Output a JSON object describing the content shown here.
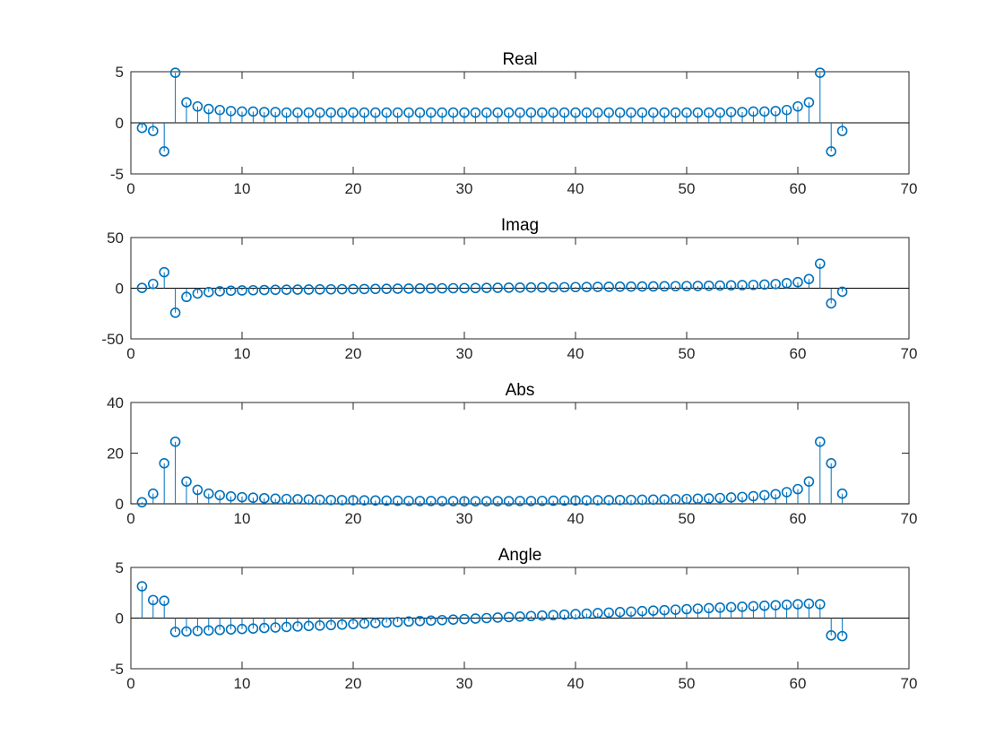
{
  "chart_data": [
    {
      "type": "stem",
      "title": "Real",
      "xlabel": "",
      "ylabel": "",
      "xlim": [
        0,
        70
      ],
      "ylim": [
        -5,
        5
      ],
      "xticks": [
        0,
        10,
        20,
        30,
        40,
        50,
        60,
        70
      ],
      "yticks": [
        -5,
        0,
        5
      ],
      "x": [
        1,
        2,
        3,
        4,
        5,
        6,
        7,
        8,
        9,
        10,
        11,
        12,
        13,
        14,
        15,
        16,
        17,
        18,
        19,
        20,
        21,
        22,
        23,
        24,
        25,
        26,
        27,
        28,
        29,
        30,
        31,
        32,
        33,
        34,
        35,
        36,
        37,
        38,
        39,
        40,
        41,
        42,
        43,
        44,
        45,
        46,
        47,
        48,
        49,
        50,
        51,
        52,
        53,
        54,
        55,
        56,
        57,
        58,
        59,
        60,
        61,
        62,
        63,
        64
      ],
      "values": [
        -0.5,
        -0.8,
        -2.8,
        4.9,
        2.0,
        1.6,
        1.35,
        1.25,
        1.15,
        1.1,
        1.1,
        1.05,
        1.05,
        1.0,
        1.0,
        1.0,
        1.0,
        1.0,
        1.0,
        1.0,
        1.0,
        1.0,
        1.0,
        1.0,
        1.0,
        1.0,
        1.0,
        1.0,
        1.0,
        1.0,
        1.0,
        1.0,
        1.0,
        1.0,
        1.0,
        1.0,
        1.0,
        1.0,
        1.0,
        1.0,
        1.0,
        1.0,
        1.0,
        1.0,
        1.0,
        1.0,
        1.0,
        1.0,
        1.0,
        1.0,
        1.0,
        1.0,
        1.0,
        1.05,
        1.05,
        1.1,
        1.1,
        1.15,
        1.25,
        1.6,
        2.0,
        4.9,
        -2.8,
        -0.8
      ]
    },
    {
      "type": "stem",
      "title": "Imag",
      "xlabel": "",
      "ylabel": "",
      "xlim": [
        0,
        70
      ],
      "ylim": [
        -50,
        50
      ],
      "xticks": [
        0,
        10,
        20,
        30,
        40,
        50,
        60,
        70
      ],
      "yticks": [
        -50,
        0,
        50
      ],
      "x": [
        1,
        2,
        3,
        4,
        5,
        6,
        7,
        8,
        9,
        10,
        11,
        12,
        13,
        14,
        15,
        16,
        17,
        18,
        19,
        20,
        21,
        22,
        23,
        24,
        25,
        26,
        27,
        28,
        29,
        30,
        31,
        32,
        33,
        34,
        35,
        36,
        37,
        38,
        39,
        40,
        41,
        42,
        43,
        44,
        45,
        46,
        47,
        48,
        49,
        50,
        51,
        52,
        53,
        54,
        55,
        56,
        57,
        58,
        59,
        60,
        61,
        62,
        63,
        64
      ],
      "values": [
        0.3,
        4.2,
        15.8,
        -24.2,
        -8.6,
        -5.2,
        -3.8,
        -3.0,
        -2.5,
        -2.2,
        -2.0,
        -1.8,
        -1.6,
        -1.5,
        -1.4,
        -1.3,
        -1.2,
        -1.1,
        -1.0,
        -0.9,
        -0.8,
        -0.7,
        -0.6,
        -0.5,
        -0.4,
        -0.3,
        -0.2,
        -0.1,
        0.0,
        0.1,
        0.2,
        0.3,
        0.4,
        0.5,
        0.6,
        0.7,
        0.8,
        0.9,
        1.0,
        1.1,
        1.2,
        1.3,
        1.4,
        1.5,
        1.6,
        1.7,
        1.8,
        1.9,
        2.0,
        2.1,
        2.2,
        2.4,
        2.6,
        2.8,
        3.0,
        3.2,
        3.6,
        4.1,
        5.0,
        6.0,
        9.0,
        24.2,
        -15.0,
        -3.5
      ]
    },
    {
      "type": "stem",
      "title": "Abs",
      "xlabel": "",
      "ylabel": "",
      "xlim": [
        0,
        70
      ],
      "ylim": [
        0,
        40
      ],
      "xticks": [
        0,
        10,
        20,
        30,
        40,
        50,
        60,
        70
      ],
      "yticks": [
        0,
        20,
        40
      ],
      "x": [
        1,
        2,
        3,
        4,
        5,
        6,
        7,
        8,
        9,
        10,
        11,
        12,
        13,
        14,
        15,
        16,
        17,
        18,
        19,
        20,
        21,
        22,
        23,
        24,
        25,
        26,
        27,
        28,
        29,
        30,
        31,
        32,
        33,
        34,
        35,
        36,
        37,
        38,
        39,
        40,
        41,
        42,
        43,
        44,
        45,
        46,
        47,
        48,
        49,
        50,
        51,
        52,
        53,
        54,
        55,
        56,
        57,
        58,
        59,
        60,
        61,
        62,
        63,
        64
      ],
      "values": [
        0.6,
        4.0,
        16.0,
        24.5,
        8.8,
        5.5,
        4.0,
        3.4,
        2.9,
        2.6,
        2.4,
        2.2,
        2.0,
        1.9,
        1.8,
        1.7,
        1.6,
        1.5,
        1.45,
        1.4,
        1.35,
        1.3,
        1.25,
        1.2,
        1.15,
        1.1,
        1.1,
        1.05,
        1.05,
        1.0,
        1.0,
        1.0,
        1.05,
        1.05,
        1.1,
        1.1,
        1.15,
        1.2,
        1.25,
        1.3,
        1.35,
        1.4,
        1.45,
        1.5,
        1.55,
        1.6,
        1.65,
        1.7,
        1.8,
        1.9,
        2.0,
        2.1,
        2.3,
        2.5,
        2.7,
        3.0,
        3.4,
        3.8,
        4.6,
        5.8,
        8.8,
        24.5,
        16.0,
        4.0
      ]
    },
    {
      "type": "stem",
      "title": "Angle",
      "xlabel": "",
      "ylabel": "",
      "xlim": [
        0,
        70
      ],
      "ylim": [
        -5,
        5
      ],
      "xticks": [
        0,
        10,
        20,
        30,
        40,
        50,
        60,
        70
      ],
      "yticks": [
        -5,
        0,
        5
      ],
      "x": [
        1,
        2,
        3,
        4,
        5,
        6,
        7,
        8,
        9,
        10,
        11,
        12,
        13,
        14,
        15,
        16,
        17,
        18,
        19,
        20,
        21,
        22,
        23,
        24,
        25,
        26,
        27,
        28,
        29,
        30,
        31,
        32,
        33,
        34,
        35,
        36,
        37,
        38,
        39,
        40,
        41,
        42,
        43,
        44,
        45,
        46,
        47,
        48,
        49,
        50,
        51,
        52,
        53,
        54,
        55,
        56,
        57,
        58,
        59,
        60,
        61,
        62,
        63,
        64
      ],
      "values": [
        3.14,
        1.78,
        1.71,
        -1.37,
        -1.32,
        -1.27,
        -1.22,
        -1.17,
        -1.12,
        -1.08,
        -1.03,
        -0.98,
        -0.93,
        -0.88,
        -0.83,
        -0.78,
        -0.74,
        -0.69,
        -0.64,
        -0.59,
        -0.54,
        -0.49,
        -0.44,
        -0.39,
        -0.34,
        -0.29,
        -0.25,
        -0.2,
        -0.15,
        -0.1,
        -0.05,
        0.0,
        0.05,
        0.1,
        0.15,
        0.2,
        0.25,
        0.29,
        0.34,
        0.39,
        0.44,
        0.49,
        0.54,
        0.59,
        0.64,
        0.69,
        0.74,
        0.78,
        0.83,
        0.88,
        0.93,
        0.98,
        1.03,
        1.08,
        1.12,
        1.17,
        1.22,
        1.27,
        1.32,
        1.37,
        1.42,
        1.37,
        -1.71,
        -1.78
      ]
    }
  ],
  "colors": {
    "series": "#0072bd",
    "axes": "#262626",
    "baseline": "#000000",
    "background": "#ffffff"
  }
}
